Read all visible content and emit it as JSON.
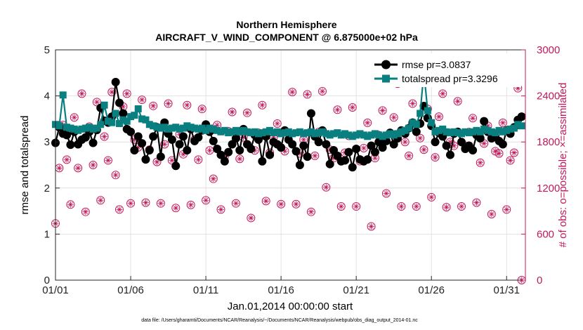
{
  "chart_data": {
    "type": "line",
    "title": "Northern Hemisphere",
    "subtitle": "AIRCRAFT_V_WIND_COMPONENT @ 6.875000e+02 hPa",
    "xlabel": "Jan.01,2014 00:00:00 start",
    "ylabel": "rmse and totalspread",
    "ylabel_right": "# of obs: o=possible; ×=assimilated",
    "footnote": "data file: /Users/gharamti/Documents/NCAR/Reanalysis/~/Documents/NCAR/Reanalysis/webpub/obs_diag_output_2014-01.nc",
    "xlim": [
      1,
      32.25
    ],
    "ylim": [
      0,
      5
    ],
    "ylim_right": [
      0,
      3000
    ],
    "x_ticks": [
      1,
      6,
      11,
      16,
      21,
      26,
      31
    ],
    "x_tick_labels": [
      "01/01",
      "01/06",
      "01/11",
      "01/16",
      "01/21",
      "01/26",
      "01/31"
    ],
    "y_ticks": [
      0,
      1,
      2,
      3,
      4,
      5
    ],
    "y_tick_labels": [
      "0",
      "1",
      "2",
      "3",
      "4",
      "5"
    ],
    "y_ticks_right": [
      0,
      600,
      1200,
      1800,
      2400,
      3000
    ],
    "y_tick_labels_right": [
      "0",
      "600",
      "1200",
      "1800",
      "2400",
      "3000"
    ],
    "legend": [
      "rmse pr=3.0837",
      "totalspread pr=3.3296"
    ],
    "colors": {
      "rmse": "#000000",
      "spread": "#0a7f80",
      "obs": "#c2185b"
    },
    "x_start": 1,
    "x_step": 0.25,
    "series": [
      {
        "name": "rmse pr=3.0837",
        "values": [
          2.98,
          3.32,
          3.18,
          3.15,
          2.94,
          3.22,
          2.95,
          3.05,
          3.1,
          3.22,
          2.98,
          3.26,
          3.74,
          3.46,
          3.42,
          3.55,
          4.3,
          3.85,
          3.62,
          3.28,
          3.22,
          2.82,
          3.12,
          2.97,
          2.62,
          2.82,
          3.12,
          3.32,
          2.68,
          3.42,
          3.18,
          3.05,
          2.48,
          2.95,
          3.12,
          2.82,
          3.28,
          3.02,
          3.1,
          3.25,
          3.38,
          3.22,
          3.02,
          2.85,
          2.72,
          2.58,
          2.78,
          2.95,
          3.08,
          2.82,
          3.28,
          2.95,
          2.85,
          3.15,
          3.05,
          2.58,
          3.12,
          2.72,
          3.0,
          2.95,
          2.88,
          3.25,
          3.05,
          2.95,
          2.8,
          2.5,
          2.92,
          2.68,
          3.62,
          3.12,
          3.0,
          3.25,
          2.95,
          2.52,
          2.82,
          2.7,
          2.58,
          2.6,
          2.78,
          2.45,
          2.85,
          2.62,
          2.58,
          2.62,
          2.92,
          2.78,
          3.0,
          2.88,
          3.02,
          3.2,
          2.95,
          3.08,
          3.25,
          3.18,
          3.3,
          3.42,
          3.22,
          3.4,
          3.78,
          3.52,
          3.35,
          3.0,
          3.2,
          3.12,
          2.92,
          2.72,
          3.18,
          3.22,
          3.0,
          2.85,
          2.92,
          2.82,
          3.15,
          3.08,
          3.45,
          3.22,
          3.08,
          3.12,
          3.02,
          2.95,
          3.25,
          3.18,
          3.32,
          3.48,
          3.55
        ]
      },
      {
        "name": "totalspread pr=3.3296",
        "values": [
          3.38,
          3.35,
          4.02,
          3.32,
          3.3,
          3.28,
          3.25,
          3.28,
          3.3,
          3.32,
          3.28,
          3.3,
          3.38,
          3.8,
          3.45,
          3.42,
          3.62,
          3.4,
          3.48,
          3.45,
          3.55,
          3.58,
          3.72,
          3.5,
          3.48,
          3.38,
          3.35,
          3.32,
          3.3,
          3.32,
          3.28,
          3.3,
          3.32,
          3.28,
          3.3,
          3.35,
          3.32,
          3.3,
          3.28,
          3.3,
          3.25,
          3.3,
          3.28,
          3.25,
          3.22,
          3.25,
          3.2,
          3.22,
          3.25,
          3.22,
          3.25,
          3.22,
          3.2,
          3.22,
          3.18,
          3.2,
          3.22,
          3.25,
          3.2,
          3.22,
          3.18,
          3.2,
          3.22,
          3.18,
          3.2,
          3.22,
          3.18,
          3.2,
          3.22,
          3.18,
          3.2,
          3.22,
          3.18,
          3.15,
          3.18,
          3.2,
          3.15,
          3.18,
          3.15,
          3.12,
          3.15,
          3.18,
          3.15,
          3.12,
          3.15,
          3.18,
          3.15,
          3.12,
          3.15,
          3.18,
          3.15,
          3.18,
          3.22,
          3.25,
          3.3,
          3.42,
          3.38,
          3.62,
          4.52,
          3.68,
          3.42,
          3.22,
          3.25,
          3.28,
          3.22,
          3.2,
          3.22,
          3.2,
          3.18,
          3.22,
          3.2,
          3.22,
          3.25,
          3.22,
          3.28,
          3.25,
          3.22,
          3.2,
          3.25,
          3.22,
          3.25,
          3.28,
          3.3,
          3.38,
          3.35
        ]
      }
    ],
    "obs_series": {
      "name": "# of obs (possible / assimilated)",
      "x_start": 1,
      "x_step": 0.25,
      "values": [
        738,
        1460,
        2020,
        1570,
        985,
        2120,
        1460,
        2430,
        890,
        2000,
        1500,
        2320,
        1040,
        1870,
        1560,
        2450,
        1370,
        920,
        2260,
        2430,
        1000,
        1830,
        1730,
        2350,
        1010,
        1700,
        2270,
        1540,
        1000,
        1770,
        2300,
        1560,
        940,
        1900,
        1640,
        2280,
        980,
        1830,
        1570,
        2230,
        1040,
        1690,
        1320,
        2020,
        920,
        1610,
        1940,
        2190,
        1000,
        1580,
        1860,
        2180,
        810,
        1690,
        1920,
        2280,
        1030,
        1660,
        1860,
        2040,
        990,
        1680,
        1910,
        2450,
        990,
        1650,
        1830,
        2420,
        890,
        1620,
        1930,
        2460,
        1210,
        1700,
        1590,
        2220,
        960,
        1660,
        1880,
        2250,
        960,
        1550,
        1720,
        2050,
        700,
        1590,
        1890,
        2210,
        1130,
        1910,
        2120,
        2560,
        960,
        1800,
        1620,
        2300,
        960,
        1850,
        1700,
        2230,
        1080,
        1600,
        2130,
        2430,
        950,
        1800,
        1750,
        2330,
        960,
        1750,
        1930,
        2110,
        1010,
        1530,
        1780,
        2010,
        860,
        1680,
        1650,
        2050,
        920,
        1560,
        1660,
        2500,
        0
      ]
    }
  }
}
